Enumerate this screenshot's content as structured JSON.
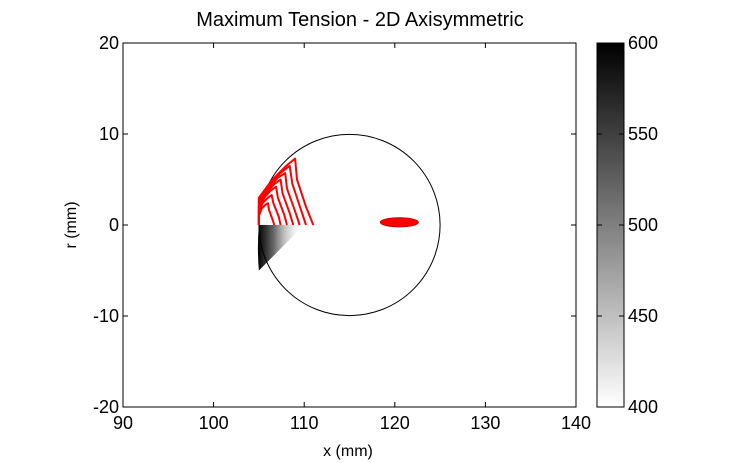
{
  "chart_data": {
    "type": "heatmap",
    "title": "Maximum Tension - 2D Axisymmetric",
    "xlabel": "x (mm)",
    "ylabel": "r (mm)",
    "xlim": [
      90,
      140
    ],
    "ylim": [
      -20,
      20
    ],
    "x_ticks": [
      "90",
      "100",
      "110",
      "120",
      "130",
      "140"
    ],
    "y_ticks": [
      "20",
      "10",
      "0",
      "-10",
      "-20"
    ],
    "colorbar": {
      "range": [
        400,
        600
      ],
      "ticks": [
        "600",
        "550",
        "500",
        "450",
        "400"
      ],
      "colormap": "gray-reversed"
    },
    "circle": {
      "center_x": 115,
      "center_r": 0,
      "radius": 10
    },
    "heat_region": {
      "x_start": 105,
      "x_end": 110,
      "r_start": 0,
      "r_end": -5,
      "max_value": 600,
      "min_value": 400
    },
    "contour_color": "#ff0000",
    "contours": [
      {
        "points": [
          [
            105,
            0
          ],
          [
            105,
            3
          ],
          [
            106.5,
            5
          ],
          [
            108,
            6.5
          ],
          [
            109,
            7.3
          ],
          [
            109.2,
            5
          ],
          [
            110.2,
            2
          ],
          [
            111,
            0
          ]
        ]
      },
      {
        "points": [
          [
            105,
            0
          ],
          [
            105,
            2.7
          ],
          [
            106.2,
            4.5
          ],
          [
            107.5,
            5.8
          ],
          [
            108.4,
            6.5
          ],
          [
            108.7,
            4.5
          ],
          [
            109.6,
            1.8
          ],
          [
            110.2,
            0
          ]
        ]
      },
      {
        "points": [
          [
            105,
            0
          ],
          [
            105,
            2.3
          ],
          [
            106,
            4
          ],
          [
            107.1,
            5.2
          ],
          [
            107.9,
            5.7
          ],
          [
            108.1,
            4
          ],
          [
            109,
            1.5
          ],
          [
            109.5,
            0
          ]
        ]
      },
      {
        "points": [
          [
            105,
            0
          ],
          [
            105,
            2
          ],
          [
            105.8,
            3.5
          ],
          [
            106.7,
            4.5
          ],
          [
            107.4,
            5
          ],
          [
            107.6,
            3.5
          ],
          [
            108.4,
            1.3
          ],
          [
            108.8,
            0
          ]
        ]
      },
      {
        "points": [
          [
            105,
            0
          ],
          [
            105,
            1.7
          ],
          [
            105.6,
            3
          ],
          [
            106.3,
            3.8
          ],
          [
            106.9,
            4.2
          ],
          [
            107.1,
            3
          ],
          [
            107.8,
            1.1
          ],
          [
            108.1,
            0
          ]
        ]
      },
      {
        "points": [
          [
            105,
            0
          ],
          [
            105,
            1.3
          ],
          [
            105.4,
            2.4
          ],
          [
            106,
            3
          ],
          [
            106.4,
            3.3
          ],
          [
            106.6,
            2.4
          ],
          [
            107.2,
            0.9
          ],
          [
            107.4,
            0
          ]
        ]
      },
      {
        "points": [
          [
            105,
            0
          ],
          [
            105,
            1
          ],
          [
            105.3,
            1.8
          ],
          [
            105.7,
            2.2
          ],
          [
            106,
            2.4
          ],
          [
            106.1,
            1.7
          ],
          [
            106.5,
            0.6
          ],
          [
            106.7,
            0
          ]
        ]
      }
    ],
    "blob": {
      "cx": 120.5,
      "cr": 0.3,
      "rx": 2.1,
      "rr": 0.5
    }
  }
}
